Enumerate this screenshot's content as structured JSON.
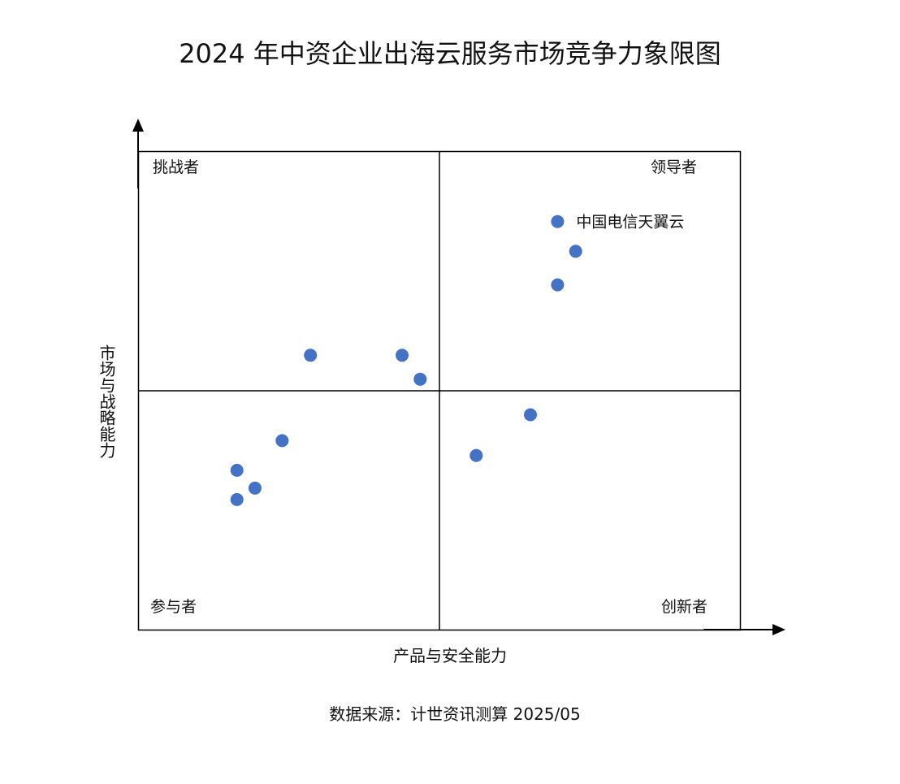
{
  "chart_data": {
    "type": "scatter",
    "title": "2024 年中资企业出海云服务市场竞争力象限图",
    "xlabel": "产品与安全能力",
    "ylabel": "市场与战略能力",
    "xlim": [
      0,
      100
    ],
    "ylim": [
      0,
      100
    ],
    "grid": false,
    "quadrant_split": {
      "x": 50,
      "y": 50
    },
    "quadrants": {
      "top_left": "挑战者",
      "top_right": "领导者",
      "bottom_left": "参与者",
      "bottom_right": "创新者"
    },
    "point_color": "#4472C4",
    "points": [
      {
        "x": 69.6,
        "y": 85.3,
        "label": "中国电信天翼云"
      },
      {
        "x": 72.6,
        "y": 79.1,
        "label": ""
      },
      {
        "x": 69.6,
        "y": 72.1,
        "label": ""
      },
      {
        "x": 28.6,
        "y": 57.4,
        "label": ""
      },
      {
        "x": 43.8,
        "y": 57.4,
        "label": ""
      },
      {
        "x": 46.8,
        "y": 52.4,
        "label": ""
      },
      {
        "x": 65.1,
        "y": 45.0,
        "label": ""
      },
      {
        "x": 56.1,
        "y": 36.5,
        "label": ""
      },
      {
        "x": 23.9,
        "y": 39.6,
        "label": ""
      },
      {
        "x": 16.4,
        "y": 33.4,
        "label": ""
      },
      {
        "x": 19.4,
        "y": 29.7,
        "label": ""
      },
      {
        "x": 16.4,
        "y": 27.3,
        "label": ""
      }
    ]
  },
  "source": "数据来源：计世资讯测算 2025/05"
}
